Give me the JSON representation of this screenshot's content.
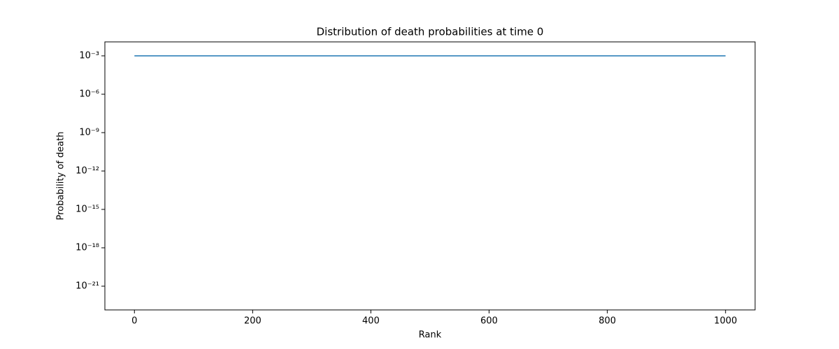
{
  "chart_data": {
    "type": "line",
    "title": "Distribution of death probabilities at time 0",
    "x_label": "Rank",
    "y_label": "Probability of death",
    "x": [
      0,
      1000
    ],
    "series": [
      {
        "name": "death probability",
        "color": "#1f77b4",
        "values": [
          0.001,
          0.001
        ]
      }
    ],
    "xlim": [
      -50,
      1050
    ],
    "xticks": [
      0,
      200,
      400,
      600,
      800,
      1000
    ],
    "ylim": [
      1.4e-23,
      0.0123
    ],
    "y_scale": "log",
    "yticks": [
      {
        "value": 0.001,
        "label": "10⁻³"
      },
      {
        "value": 1e-06,
        "label": "10⁻⁶"
      },
      {
        "value": 1e-09,
        "label": "10⁻⁹"
      },
      {
        "value": 1e-12,
        "label": "10⁻¹²"
      },
      {
        "value": 1e-15,
        "label": "10⁻¹⁵"
      },
      {
        "value": 1e-18,
        "label": "10⁻¹⁸"
      },
      {
        "value": 1e-21,
        "label": "10⁻²¹"
      }
    ],
    "grid": false
  }
}
